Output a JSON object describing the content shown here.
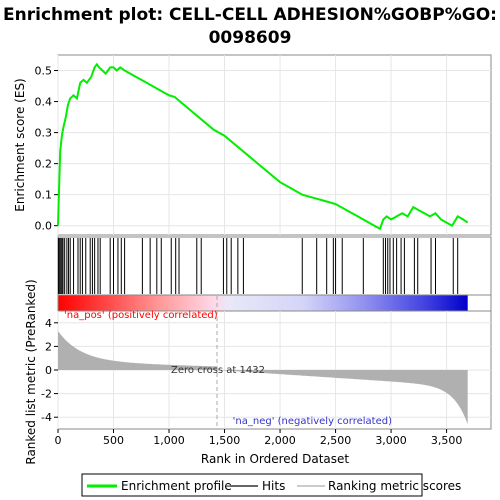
{
  "chart_data": {
    "type": "line",
    "title_line1": "Enrichment plot: CELL-CELL ADHESION%GOBP%GO:",
    "title_line2": "0098609",
    "es_panel": {
      "ylabel": "Enrichment score (ES)",
      "ylim": [
        -0.03,
        0.55
      ],
      "yticks": [
        0.0,
        0.1,
        0.2,
        0.3,
        0.4,
        0.5
      ],
      "ytick_labels": [
        "0.0",
        "0.1",
        "0.2",
        "0.3",
        "0.4",
        "0.5"
      ],
      "series": [
        {
          "name": "Enrichment profile",
          "color": "#00ee00",
          "x": [
            0,
            10,
            20,
            35,
            50,
            70,
            90,
            110,
            140,
            170,
            200,
            230,
            260,
            300,
            330,
            350,
            370,
            400,
            430,
            470,
            500,
            530,
            560,
            600,
            650,
            700,
            750,
            800,
            850,
            900,
            950,
            1000,
            1050,
            1100,
            1200,
            1300,
            1400,
            1500,
            1600,
            1700,
            1800,
            1900,
            2000,
            2100,
            2200,
            2300,
            2400,
            2500,
            2600,
            2700,
            2750,
            2800,
            2850,
            2900,
            2930,
            2960,
            3000,
            3050,
            3100,
            3150,
            3200,
            3250,
            3300,
            3350,
            3400,
            3450,
            3500,
            3550,
            3600,
            3650,
            3690
          ],
          "y": [
            0.0,
            0.12,
            0.24,
            0.29,
            0.32,
            0.35,
            0.39,
            0.41,
            0.42,
            0.41,
            0.46,
            0.47,
            0.46,
            0.48,
            0.51,
            0.52,
            0.51,
            0.5,
            0.49,
            0.51,
            0.51,
            0.5,
            0.51,
            0.5,
            0.49,
            0.48,
            0.47,
            0.46,
            0.45,
            0.44,
            0.43,
            0.42,
            0.415,
            0.4,
            0.37,
            0.34,
            0.31,
            0.29,
            0.26,
            0.23,
            0.2,
            0.17,
            0.14,
            0.12,
            0.1,
            0.09,
            0.08,
            0.07,
            0.05,
            0.03,
            0.02,
            0.01,
            0.0,
            -0.01,
            0.02,
            0.03,
            0.02,
            0.03,
            0.04,
            0.03,
            0.06,
            0.05,
            0.04,
            0.03,
            0.04,
            0.02,
            0.01,
            0.0,
            0.03,
            0.02,
            0.01
          ]
        }
      ]
    },
    "hits_panel": {
      "hit_ranks": [
        5,
        15,
        25,
        35,
        45,
        60,
        80,
        95,
        110,
        140,
        180,
        200,
        220,
        250,
        290,
        310,
        330,
        360,
        380,
        470,
        500,
        540,
        570,
        600,
        760,
        830,
        890,
        930,
        1020,
        1060,
        1090,
        1250,
        1290,
        1490,
        1520,
        1560,
        1620,
        1670,
        2200,
        2330,
        2420,
        2480,
        2500,
        2560,
        2750,
        2930,
        2950,
        2970,
        2990,
        3020,
        3050,
        3090,
        3120,
        3210,
        3240,
        3360,
        3400,
        3560,
        3600
      ]
    },
    "metric_panel": {
      "ylabel": "Ranked list metric (PreRanked)",
      "ylim": [
        -5,
        5
      ],
      "yticks": [
        -4,
        -2,
        0,
        2,
        4
      ],
      "ytick_labels": [
        "-4",
        "-2",
        "0",
        "2",
        "4"
      ],
      "color": "#b0b0b0",
      "zero_cross_label": "Zero cross at 1432",
      "zero_cross_rank": 1432,
      "pos_label": "'na_pos' (positively correlated)",
      "neg_label": "'na_neg' (negatively correlated)",
      "pos_color": "#ff0000",
      "neg_color": "#0000ff"
    },
    "x_axis": {
      "xlabel": "Rank in Ordered Dataset",
      "xlim": [
        0,
        3900
      ],
      "xticks": [
        0,
        500,
        1000,
        1500,
        2000,
        2500,
        3000,
        3500
      ],
      "xtick_labels": [
        "0",
        "500",
        "1,000",
        "1,500",
        "2,000",
        "2,500",
        "3,000",
        "3,500"
      ],
      "n_ranks": 3690
    },
    "legend": {
      "placement": "bottom",
      "entries": [
        {
          "label": "Enrichment profile",
          "color": "#00ee00"
        },
        {
          "label": "Hits",
          "color": "#666666"
        },
        {
          "label": "Ranking metric scores",
          "color": "#cccccc"
        }
      ]
    }
  }
}
